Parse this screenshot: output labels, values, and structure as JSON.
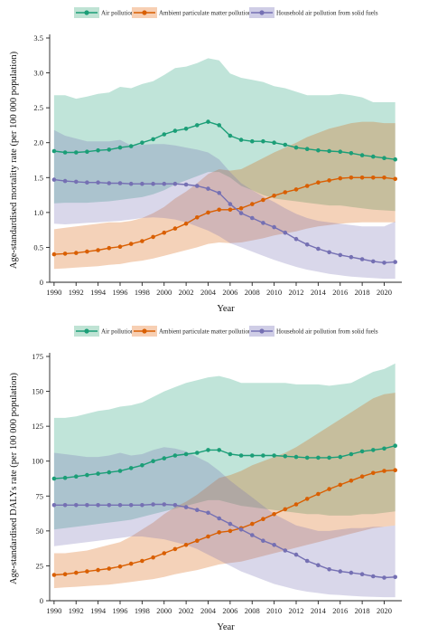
{
  "colors": {
    "air": "#1b9e77",
    "ambient": "#d95f02",
    "household": "#7570b3",
    "air_band": "#bfe3d4",
    "ambient_band": "#f7cfb3",
    "household_band": "#cfcde6"
  },
  "chart_data": [
    {
      "type": "line",
      "ylabel": "Age-standardised mortality rate (per 100 000 population)",
      "xlabel": "Year",
      "ylim": [
        0,
        3.5
      ],
      "yticks": [
        "0",
        "0.5",
        "1.0",
        "1.5",
        "2.0",
        "2.5",
        "3.0",
        "3.5"
      ],
      "xticks": [
        "1990",
        "1992",
        "1994",
        "1996",
        "1998",
        "2000",
        "2002",
        "2004",
        "2006",
        "2008",
        "2010",
        "2012",
        "2014",
        "2016",
        "2018",
        "2020"
      ],
      "legend_position": "top",
      "x": [
        1990,
        1991,
        1992,
        1993,
        1994,
        1995,
        1996,
        1997,
        1998,
        1999,
        2000,
        2001,
        2002,
        2003,
        2004,
        2005,
        2006,
        2007,
        2008,
        2009,
        2010,
        2011,
        2012,
        2013,
        2014,
        2015,
        2016,
        2017,
        2018,
        2019,
        2020,
        2021
      ],
      "series": [
        {
          "name": "Air pollution",
          "color_key": "air",
          "values": [
            1.88,
            1.86,
            1.86,
            1.87,
            1.89,
            1.9,
            1.93,
            1.95,
            2.0,
            2.05,
            2.12,
            2.17,
            2.2,
            2.25,
            2.3,
            2.25,
            2.1,
            2.04,
            2.02,
            2.02,
            2.0,
            1.97,
            1.93,
            1.91,
            1.89,
            1.88,
            1.87,
            1.85,
            1.82,
            1.8,
            1.78,
            1.76
          ],
          "upper": [
            2.68,
            2.68,
            2.63,
            2.66,
            2.7,
            2.72,
            2.8,
            2.78,
            2.84,
            2.88,
            2.97,
            3.07,
            3.09,
            3.14,
            3.21,
            3.18,
            2.99,
            2.93,
            2.9,
            2.87,
            2.81,
            2.78,
            2.73,
            2.68,
            2.68,
            2.68,
            2.7,
            2.68,
            2.65,
            2.58,
            2.58,
            2.58
          ],
          "lower": [
            1.13,
            1.14,
            1.14,
            1.14,
            1.15,
            1.16,
            1.18,
            1.2,
            1.22,
            1.26,
            1.32,
            1.4,
            1.46,
            1.52,
            1.58,
            1.58,
            1.5,
            1.38,
            1.32,
            1.25,
            1.2,
            1.18,
            1.16,
            1.14,
            1.12,
            1.1,
            1.1,
            1.08,
            1.06,
            1.04,
            1.03,
            1.02
          ]
        },
        {
          "name": "Ambient particulate matter pollution",
          "color_key": "ambient",
          "values": [
            0.4,
            0.41,
            0.42,
            0.44,
            0.46,
            0.49,
            0.51,
            0.55,
            0.59,
            0.65,
            0.71,
            0.77,
            0.84,
            0.93,
            1.0,
            1.04,
            1.04,
            1.06,
            1.12,
            1.18,
            1.24,
            1.29,
            1.33,
            1.38,
            1.43,
            1.46,
            1.49,
            1.5,
            1.5,
            1.5,
            1.5,
            1.48
          ],
          "upper": [
            0.76,
            0.78,
            0.8,
            0.82,
            0.84,
            0.86,
            0.86,
            0.88,
            0.92,
            0.99,
            1.08,
            1.2,
            1.3,
            1.42,
            1.55,
            1.62,
            1.6,
            1.62,
            1.7,
            1.78,
            1.86,
            1.93,
            2.0,
            2.08,
            2.14,
            2.2,
            2.24,
            2.28,
            2.3,
            2.3,
            2.28,
            2.28
          ],
          "lower": [
            0.19,
            0.2,
            0.21,
            0.22,
            0.23,
            0.25,
            0.26,
            0.29,
            0.31,
            0.34,
            0.38,
            0.42,
            0.46,
            0.5,
            0.55,
            0.57,
            0.56,
            0.57,
            0.6,
            0.63,
            0.67,
            0.7,
            0.73,
            0.77,
            0.8,
            0.82,
            0.84,
            0.85,
            0.86,
            0.86,
            0.86,
            0.86
          ]
        },
        {
          "name": "Household air pollution from solid fuels",
          "color_key": "household",
          "values": [
            1.47,
            1.45,
            1.44,
            1.43,
            1.43,
            1.42,
            1.42,
            1.41,
            1.41,
            1.41,
            1.41,
            1.41,
            1.4,
            1.38,
            1.34,
            1.28,
            1.12,
            0.99,
            0.92,
            0.85,
            0.79,
            0.71,
            0.62,
            0.54,
            0.48,
            0.43,
            0.39,
            0.36,
            0.33,
            0.3,
            0.28,
            0.29
          ],
          "upper": [
            2.18,
            2.1,
            2.06,
            2.02,
            2.02,
            2.02,
            2.04,
            1.96,
            1.97,
            1.98,
            1.98,
            1.96,
            1.93,
            1.9,
            1.86,
            1.76,
            1.58,
            1.42,
            1.32,
            1.23,
            1.15,
            1.06,
            0.98,
            0.92,
            0.88,
            0.86,
            0.84,
            0.82,
            0.8,
            0.8,
            0.8,
            0.87
          ],
          "lower": [
            0.84,
            0.83,
            0.84,
            0.85,
            0.86,
            0.87,
            0.88,
            0.9,
            0.92,
            0.93,
            0.92,
            0.9,
            0.86,
            0.8,
            0.74,
            0.66,
            0.56,
            0.5,
            0.44,
            0.38,
            0.32,
            0.27,
            0.22,
            0.18,
            0.15,
            0.12,
            0.1,
            0.08,
            0.07,
            0.06,
            0.05,
            0.05
          ]
        }
      ]
    },
    {
      "type": "line",
      "ylabel": "Age-standardised DALYs rate (per 100 000 population)",
      "xlabel": "Year",
      "ylim": [
        0,
        175
      ],
      "yticks": [
        "0",
        "25",
        "50",
        "75",
        "100",
        "125",
        "150",
        "175"
      ],
      "xticks": [
        "1990",
        "1992",
        "1994",
        "1996",
        "1998",
        "2000",
        "2002",
        "2004",
        "2006",
        "2008",
        "2010",
        "2012",
        "2014",
        "2016",
        "2018",
        "2020"
      ],
      "legend_position": "top",
      "x": [
        1990,
        1991,
        1992,
        1993,
        1994,
        1995,
        1996,
        1997,
        1998,
        1999,
        2000,
        2001,
        2002,
        2003,
        2004,
        2005,
        2006,
        2007,
        2008,
        2009,
        2010,
        2011,
        2012,
        2013,
        2014,
        2015,
        2016,
        2017,
        2018,
        2019,
        2020,
        2021
      ],
      "series": [
        {
          "name": "Air pollution",
          "color_key": "air",
          "values": [
            87.5,
            88,
            89,
            90,
            91,
            92,
            93,
            95,
            97,
            100,
            102,
            104,
            105,
            106,
            108,
            108,
            105,
            104,
            104,
            104,
            104,
            103.5,
            103,
            102.5,
            102.5,
            102.5,
            103,
            105,
            107,
            108,
            109,
            111
          ],
          "upper": [
            131,
            131,
            132,
            134,
            136,
            137,
            139,
            140,
            142,
            146,
            150,
            153,
            156,
            158,
            160,
            161,
            159,
            156,
            156,
            156,
            156,
            156,
            155,
            155,
            155,
            154,
            155,
            156,
            160,
            164,
            166,
            170
          ],
          "lower": [
            51,
            52,
            53,
            54,
            55,
            56,
            57,
            58,
            60,
            62,
            64,
            66,
            68,
            70,
            72,
            72,
            70,
            68,
            67,
            66,
            65,
            64,
            63,
            62,
            62,
            61,
            61,
            61,
            62,
            62,
            63,
            64
          ]
        },
        {
          "name": "Ambient particulate matter pollution",
          "color_key": "ambient",
          "values": [
            18.5,
            19,
            20,
            21,
            22,
            23,
            24.5,
            26.5,
            28.5,
            31,
            34,
            37,
            40,
            43,
            46,
            49,
            50,
            52,
            55,
            58.5,
            62,
            65.5,
            69,
            73,
            76.5,
            80,
            83,
            86,
            89,
            91.5,
            93,
            93.5
          ],
          "upper": [
            34,
            34,
            35,
            36,
            38,
            40,
            42,
            46,
            51,
            56,
            62,
            67,
            71,
            76,
            82,
            88,
            90,
            93,
            97,
            100,
            103,
            106,
            110,
            115,
            120,
            125,
            130,
            135,
            140,
            145,
            148,
            149
          ],
          "lower": [
            9,
            9.5,
            10,
            10.5,
            11,
            11.5,
            12.5,
            13.5,
            14.5,
            15.5,
            17,
            19,
            20.5,
            22,
            24,
            26,
            27,
            28,
            30,
            32,
            34,
            36,
            38,
            40,
            42,
            44,
            46,
            48,
            50,
            52,
            53,
            54
          ]
        },
        {
          "name": "Household air pollution from solid fuels",
          "color_key": "household",
          "values": [
            68.5,
            68.5,
            68.5,
            68.5,
            68.5,
            68.5,
            68.5,
            68.5,
            68.5,
            69,
            69,
            68.5,
            67,
            65,
            63,
            59,
            55,
            51,
            47,
            43,
            40,
            36,
            33,
            28.5,
            25.5,
            22.5,
            21,
            20,
            19,
            17.5,
            16.5,
            17
          ],
          "upper": [
            106,
            105,
            104,
            103,
            103,
            104,
            106,
            104,
            105,
            108,
            110,
            109,
            107,
            103,
            99,
            93,
            86,
            80,
            74,
            68,
            62,
            58,
            54,
            52,
            50,
            50,
            51,
            52,
            52,
            53,
            53,
            54
          ],
          "lower": [
            39,
            40,
            41,
            42,
            43,
            44,
            45,
            46,
            46,
            45,
            44,
            42,
            40,
            37,
            33,
            29,
            25,
            21,
            18,
            15,
            12,
            10,
            8,
            6.5,
            5.5,
            4.5,
            4,
            3.5,
            3,
            2.8,
            2.5,
            2.5
          ]
        }
      ]
    }
  ]
}
